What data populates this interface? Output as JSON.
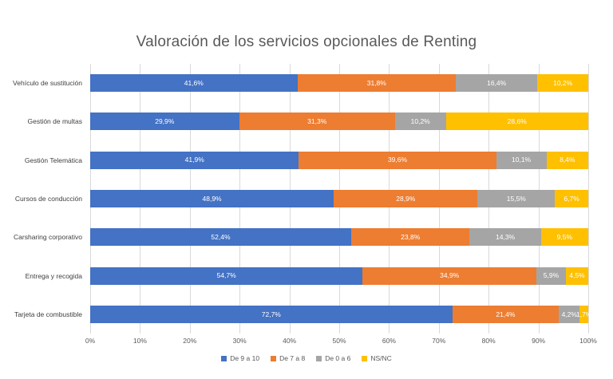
{
  "title": "Valoración de los servicios opcionales de Renting",
  "chart_data": {
    "type": "bar",
    "orientation": "horizontal",
    "stacked": true,
    "title": "Valoración de los servicios opcionales de Renting",
    "categories": [
      "Vehículo de sustitución",
      "Gestión de multas",
      "Gestión Telemática",
      "Cursos de conducción",
      "Carsharing corporativo",
      "Entrega y recogida",
      "Tarjeta de combustible"
    ],
    "series": [
      {
        "name": "De 9 a 10",
        "color": "#4472C4",
        "values": [
          41.6,
          29.9,
          41.9,
          48.9,
          52.4,
          54.7,
          72.7
        ]
      },
      {
        "name": "De 7 a 8",
        "color": "#ED7D31",
        "values": [
          31.8,
          31.3,
          39.6,
          28.9,
          23.8,
          34.9,
          21.4
        ]
      },
      {
        "name": "De 0 a 6",
        "color": "#A5A5A5",
        "values": [
          16.4,
          10.2,
          10.1,
          15.5,
          14.3,
          5.9,
          4.2
        ]
      },
      {
        "name": "NS/NC",
        "color": "#FFC000",
        "values": [
          10.2,
          28.6,
          8.4,
          6.7,
          9.5,
          4.5,
          1.7
        ]
      }
    ],
    "data_labels": [
      [
        "41,6%",
        "31,8%",
        "16,4%",
        "10,2%"
      ],
      [
        "29,9%",
        "31,3%",
        "10,2%",
        "28,6%"
      ],
      [
        "41,9%",
        "39,6%",
        "10,1%",
        "8,4%"
      ],
      [
        "48,9%",
        "28,9%",
        "15,5%",
        "6,7%"
      ],
      [
        "52,4%",
        "23,8%",
        "14,3%",
        "9,5%"
      ],
      [
        "54,7%",
        "34,9%",
        "5,9%",
        "4,5%"
      ],
      [
        "72,7%",
        "21,4%",
        "4,2%",
        "1,7%"
      ]
    ],
    "x_ticks": [
      "0%",
      "10%",
      "20%",
      "30%",
      "40%",
      "50%",
      "60%",
      "70%",
      "80%",
      "90%",
      "100%"
    ],
    "xlim": [
      0,
      100
    ],
    "grid": true,
    "gridline_color": "#D9D9D9",
    "legend_position": "bottom"
  }
}
